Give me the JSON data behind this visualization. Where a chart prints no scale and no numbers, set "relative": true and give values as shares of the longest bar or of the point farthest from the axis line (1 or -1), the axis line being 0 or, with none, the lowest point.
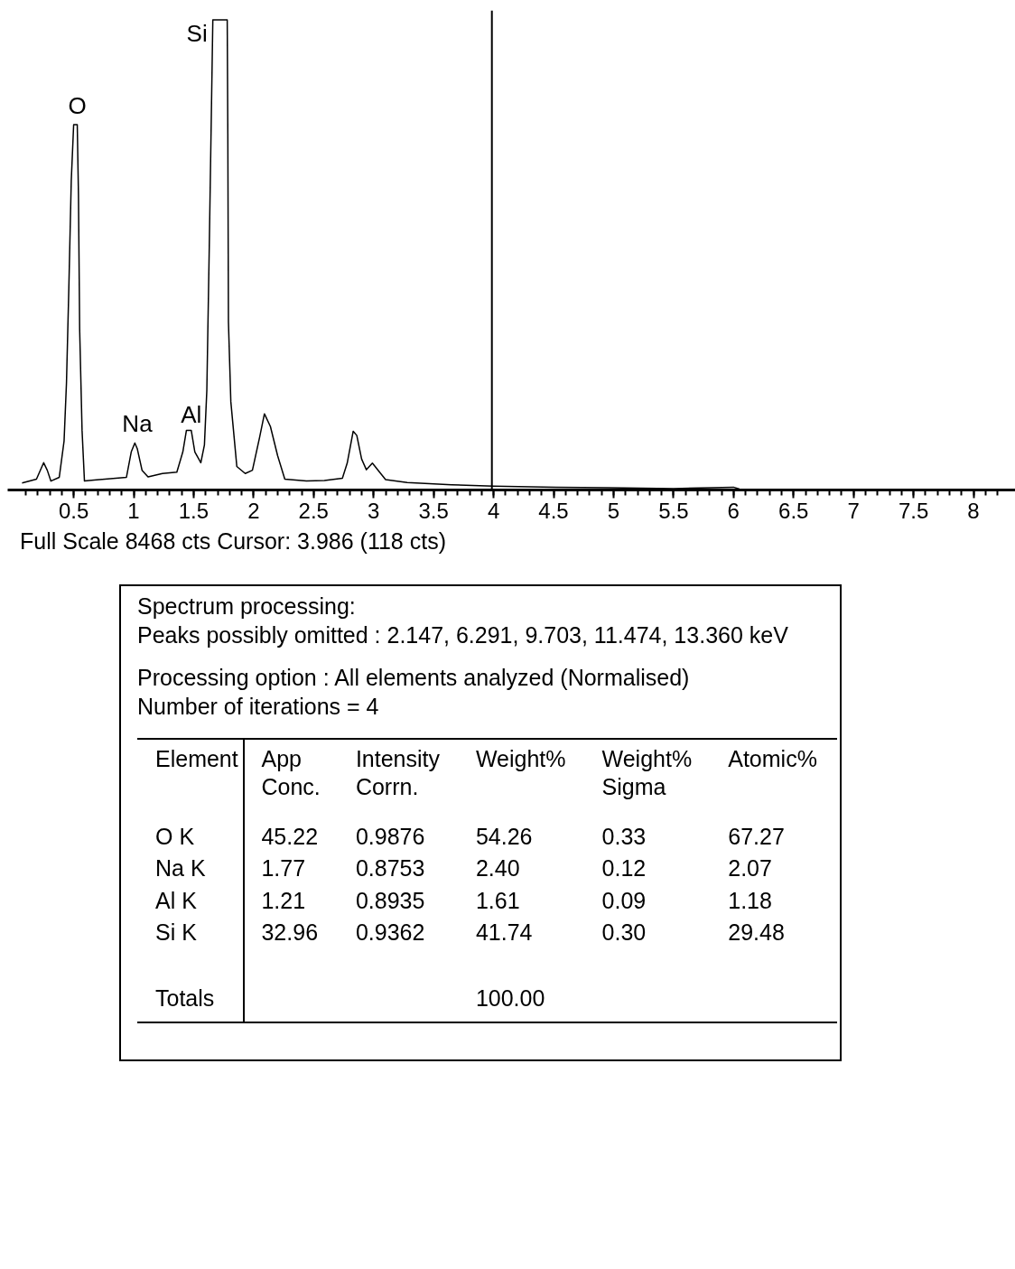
{
  "chart_data": [
    {
      "type": "line",
      "color": "#000000",
      "relative": true,
      "xlim": [
        -0.05,
        8.35
      ],
      "xticks": [
        0.5,
        1,
        1.5,
        2,
        2.5,
        3,
        3.5,
        4,
        4.5,
        5,
        5.5,
        6,
        6.5,
        7,
        7.5,
        8
      ],
      "x": [
        0.07,
        0.19,
        0.25,
        0.28,
        0.31,
        0.38,
        0.42,
        0.44,
        0.46,
        0.48,
        0.5,
        0.53,
        0.54,
        0.55,
        0.57,
        0.59,
        0.67,
        0.94,
        0.98,
        1.01,
        1.03,
        1.07,
        1.12,
        1.24,
        1.36,
        1.41,
        1.44,
        1.48,
        1.51,
        1.56,
        1.59,
        1.61,
        1.63,
        1.66,
        1.78,
        1.785,
        1.79,
        1.81,
        1.86,
        1.93,
        1.99,
        2.05,
        2.09,
        2.14,
        2.2,
        2.26,
        2.44,
        2.59,
        2.74,
        2.78,
        2.83,
        2.86,
        2.9,
        2.94,
        2.99,
        3.05,
        3.1,
        3.28,
        3.65,
        4.0,
        4.52,
        4.96,
        5.5,
        6.0,
        6.05,
        6.78,
        8.27
      ],
      "values": [
        0.015,
        0.023,
        0.058,
        0.042,
        0.019,
        0.027,
        0.104,
        0.227,
        0.431,
        0.658,
        0.777,
        0.777,
        0.627,
        0.342,
        0.127,
        0.019,
        0.021,
        0.027,
        0.081,
        0.1,
        0.088,
        0.042,
        0.028,
        0.035,
        0.038,
        0.081,
        0.127,
        0.127,
        0.081,
        0.058,
        0.096,
        0.212,
        0.512,
        1.0,
        1.0,
        0.758,
        0.358,
        0.188,
        0.05,
        0.035,
        0.042,
        0.112,
        0.162,
        0.135,
        0.073,
        0.023,
        0.019,
        0.02,
        0.025,
        0.057,
        0.125,
        0.116,
        0.066,
        0.043,
        0.057,
        0.038,
        0.022,
        0.016,
        0.011,
        0.008,
        0.006,
        0.005,
        0.003,
        0.006,
        0.002,
        0.001,
        0.0
      ],
      "ref_lines": [
        {
          "axis": "x",
          "value": 3.986,
          "color": "#000000"
        }
      ],
      "annotations": [
        {
          "text": "O",
          "x": 0.53,
          "y": 0.777
        },
        {
          "text": "Na",
          "x": 1.03,
          "y": 0.1
        },
        {
          "text": "Al",
          "x": 1.48,
          "y": 0.12
        },
        {
          "text": "Si",
          "x": 1.66,
          "y": 1.0
        },
        "Full Scale 8468 cts Cursor: 3.986 (118 cts)"
      ]
    },
    {
      "type": "other",
      "title": "Spectrum processing:",
      "annotations": [
        "Peaks possibly omitted : 2.147, 6.291, 9.703, 11.474, 13.360 keV",
        "Processing option : All elements analyzed (Normalised)",
        "Number of iterations = 4",
        "Element"
      ],
      "categories": [
        "App Conc.",
        "Intensity Corrn.",
        "Weight%",
        "Weight% Sigma",
        "Atomic%"
      ],
      "y_categories": [
        "O K",
        "Na K",
        "Al K",
        "Si K",
        "Totals"
      ],
      "cell_labels": [
        [
          "45.22",
          "0.9876",
          "54.26",
          "0.33",
          "67.27"
        ],
        [
          "1.77",
          "0.8753",
          "2.40",
          "0.12",
          "2.07"
        ],
        [
          "1.21",
          "0.8935",
          "1.61",
          "0.09",
          "1.18"
        ],
        [
          "32.96",
          "0.9362",
          "41.74",
          "0.30",
          "29.48"
        ],
        [
          null,
          null,
          "100.00",
          null,
          null
        ]
      ]
    }
  ]
}
